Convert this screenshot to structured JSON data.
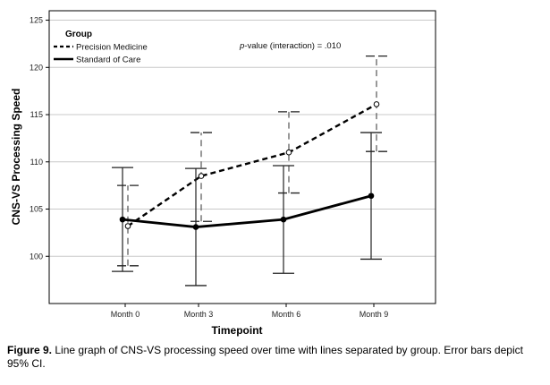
{
  "chart_data": {
    "type": "line",
    "xlabel": "Timepoint",
    "ylabel": "CNS-VS Processing Speed",
    "categories": [
      "Month 0",
      "Month 3",
      "Month 6",
      "Month 9"
    ],
    "y_ticks": [
      100,
      105,
      110,
      115,
      120,
      125
    ],
    "ylim": [
      95,
      126
    ],
    "grid": "horizontal",
    "legend": {
      "title": "Group",
      "placement": "top-left"
    },
    "annotation": {
      "italic": "p",
      "text": "-value (interaction) = .010"
    },
    "error_bars": "95% CI",
    "series": [
      {
        "name": "Precision Medicine",
        "line_style": "dashed",
        "marker": "open-circle",
        "values": [
          103.2,
          108.5,
          111.0,
          116.1
        ],
        "ci_lower": [
          99.0,
          103.7,
          106.7,
          111.1
        ],
        "ci_upper": [
          107.5,
          113.1,
          115.3,
          121.2
        ]
      },
      {
        "name": "Standard of Care",
        "line_style": "solid",
        "marker": "filled-circle",
        "values": [
          103.9,
          103.1,
          103.9,
          106.4
        ],
        "ci_lower": [
          98.4,
          96.9,
          98.2,
          99.7
        ],
        "ci_upper": [
          109.4,
          109.3,
          109.6,
          113.1
        ]
      }
    ]
  },
  "caption": {
    "label": "Figure 9.",
    "text": " Line graph of CNS-VS processing speed over time with lines separated by group. Error bars depict 95% CI."
  }
}
